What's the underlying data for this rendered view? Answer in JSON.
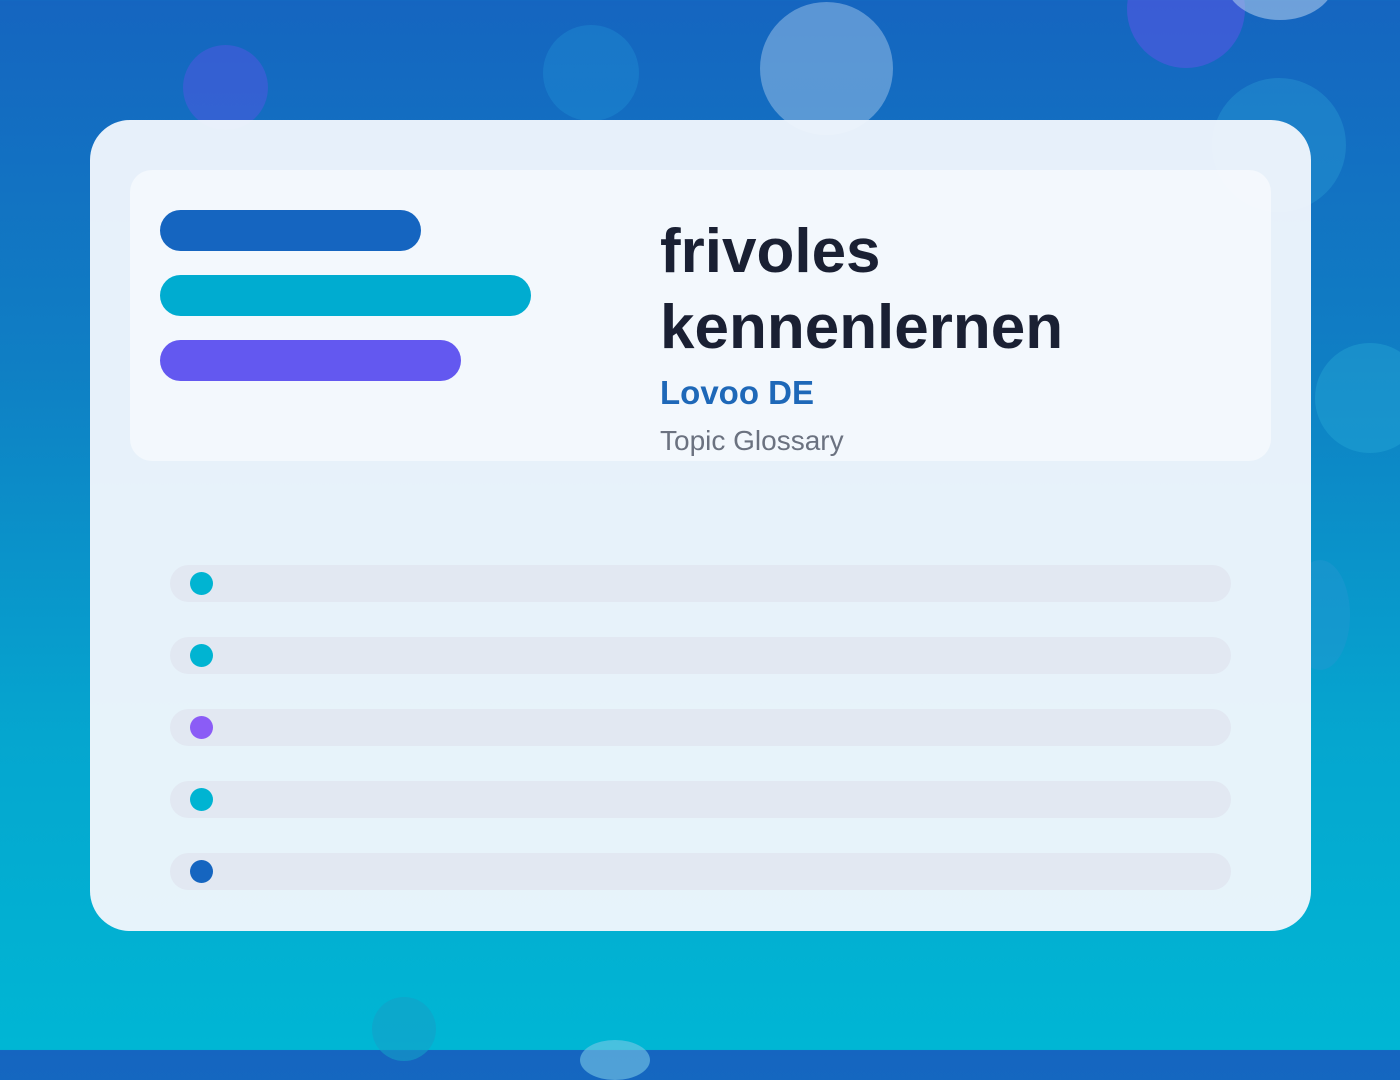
{
  "colors": {
    "text_primary": "#1a2033",
    "brand_blue": "#1e68b8",
    "muted": "#6b7280",
    "pill_blue": "#1565c0",
    "pill_cyan": "#00acd0",
    "pill_purple": "#6358f0",
    "row_bg": "#e2e8f2"
  },
  "hero": {
    "title": "frivoles kennenlernen",
    "brand": "Lovoo DE",
    "subtitle": "Topic Glossary"
  },
  "list_rows": [
    {
      "dot_color": "#00b4d2"
    },
    {
      "dot_color": "#00b4d2"
    },
    {
      "dot_color": "#8b5cf6"
    },
    {
      "dot_color": "#00b4d2"
    },
    {
      "dot_color": "#1565c0"
    }
  ]
}
